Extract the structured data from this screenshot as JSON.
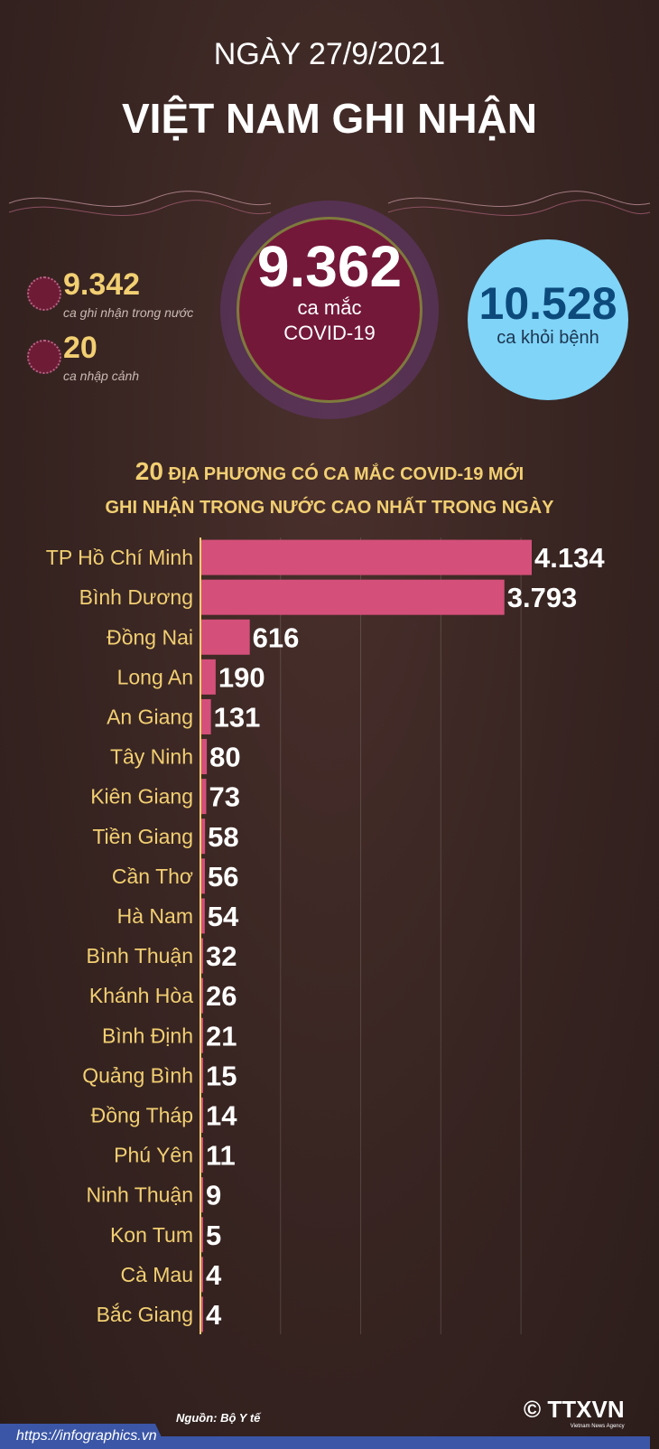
{
  "header": {
    "date_line": "NGÀY 27/9/2021",
    "title": "VIỆT NAM GHI NHẬN"
  },
  "stats": {
    "domestic": {
      "value": "9.342",
      "label": "ca ghi nhận trong nước"
    },
    "imported": {
      "value": "20",
      "label": "ca nhập cảnh"
    },
    "total": {
      "value": "9.362",
      "label1": "ca mắc",
      "label2": "COVID-19"
    },
    "recovered": {
      "value": "10.528",
      "label": "ca khỏi bệnh"
    }
  },
  "colors": {
    "bar": "#d4507a",
    "label": "#f2cf72",
    "value": "#ffffff",
    "recovered_circle": "#7fd4f8",
    "total_circle": "#74183a"
  },
  "chart_data": {
    "type": "bar",
    "orientation": "horizontal",
    "title_count": "20",
    "title_line1": "ĐỊA PHƯƠNG CÓ CA MẮC COVID-19 MỚI",
    "title_line2": "GHI NHẬN TRONG NƯỚC CAO NHẤT TRONG NGÀY",
    "categories": [
      "TP Hồ Chí Minh",
      "Bình Dương",
      "Đồng Nai",
      "Long An",
      "An Giang",
      "Tây Ninh",
      "Kiên Giang",
      "Tiền Giang",
      "Cần Thơ",
      "Hà Nam",
      "Bình Thuận",
      "Khánh Hòa",
      "Bình Định",
      "Quảng Bình",
      "Đồng Tháp",
      "Phú Yên",
      "Ninh Thuận",
      "Kon Tum",
      "Cà Mau",
      "Bắc Giang"
    ],
    "values": [
      4134,
      3793,
      616,
      190,
      131,
      80,
      73,
      58,
      56,
      54,
      32,
      26,
      21,
      15,
      14,
      11,
      9,
      5,
      4,
      4
    ],
    "value_labels": [
      "4.134",
      "3.793",
      "616",
      "190",
      "131",
      "80",
      "73",
      "58",
      "56",
      "54",
      "32",
      "26",
      "21",
      "15",
      "14",
      "11",
      "9",
      "5",
      "4",
      "4"
    ],
    "xlim": [
      0,
      5000
    ],
    "grid": true
  },
  "footer": {
    "source": "Nguồn: Bộ Y tế",
    "url": "https://infographics.vn",
    "copyright": "©",
    "logo": "TTXVN",
    "logo_sub": "Vietnam News Agency"
  }
}
